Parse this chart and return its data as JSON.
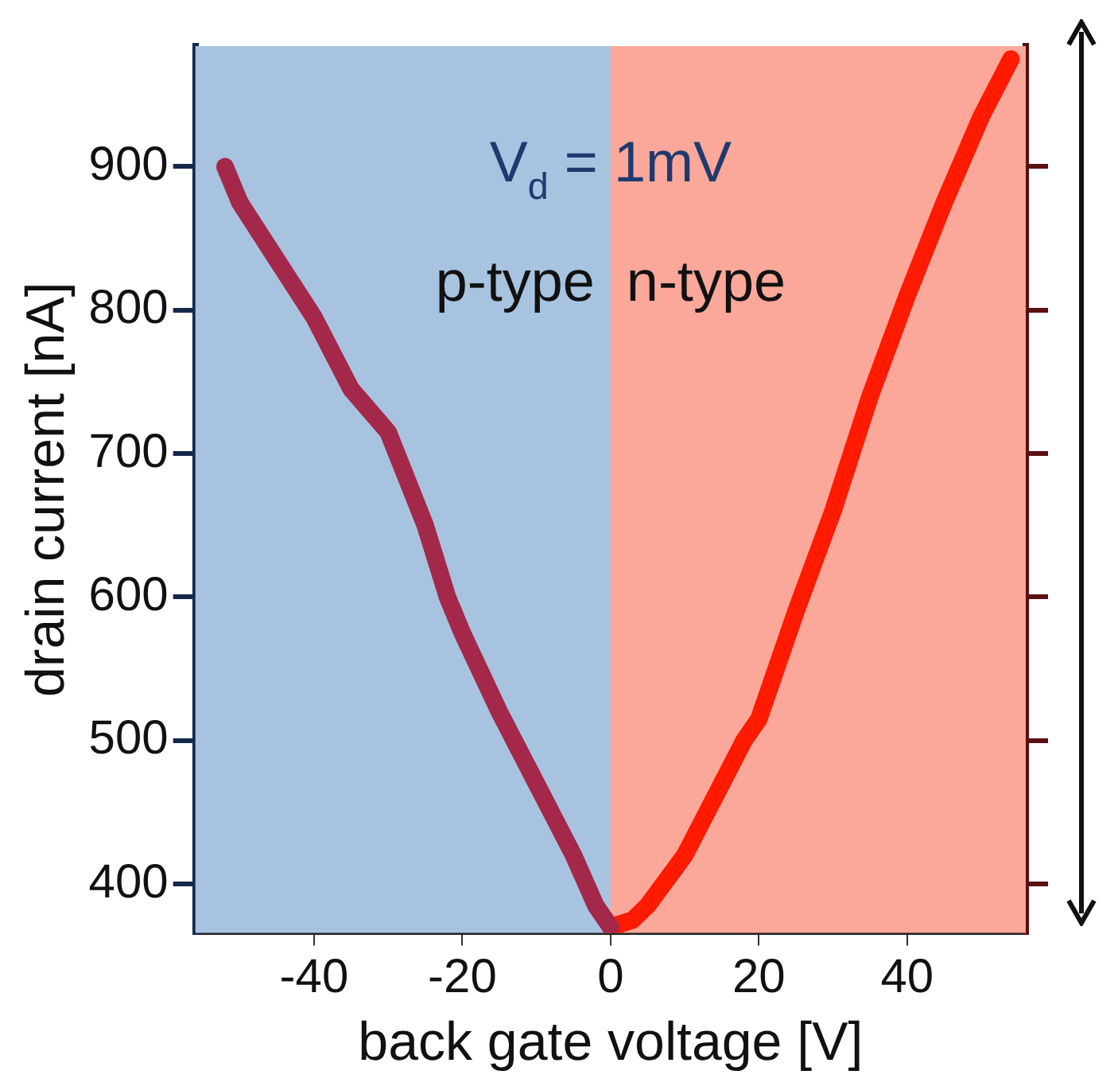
{
  "chart_data": {
    "type": "line",
    "xlabel": "back gate voltage [V]",
    "ylabel": "drain current [nA]",
    "annotations": [
      "V$_{d}$ = 1mV"
    ],
    "series": [
      {
        "color": "#a3284a",
        "x": [
          -52,
          -50,
          -45,
          -40,
          -35,
          -30,
          -25,
          -22,
          -20,
          -15,
          -10,
          -5,
          -2,
          0
        ],
        "values": [
          900,
          875,
          835,
          795,
          745,
          715,
          650,
          600,
          575,
          520,
          470,
          420,
          385,
          370
        ]
      },
      {
        "color": "#ff1a00",
        "x": [
          0,
          3,
          5,
          10,
          15,
          18,
          20,
          25,
          30,
          35,
          40,
          45,
          50,
          54
        ],
        "values": [
          370,
          375,
          385,
          420,
          470,
          500,
          515,
          590,
          660,
          740,
          810,
          875,
          935,
          975
        ]
      }
    ],
    "bands": [
      {
        "axis": "x",
        "from": -56,
        "to": 0,
        "label": "p-type",
        "color": "#a7c3e0"
      },
      {
        "axis": "x",
        "from": 0,
        "to": 56,
        "label": "n-type",
        "color": "#fba79a"
      }
    ],
    "xlim": [
      -56,
      56
    ],
    "xticks": [
      -40,
      -20,
      0,
      20,
      40
    ],
    "ylim": [
      366,
      984
    ],
    "yticks": [
      400,
      500,
      600,
      700,
      800,
      900
    ],
    "grid": false,
    "legend": false,
    "marker": "none",
    "line_style": "solid"
  }
}
